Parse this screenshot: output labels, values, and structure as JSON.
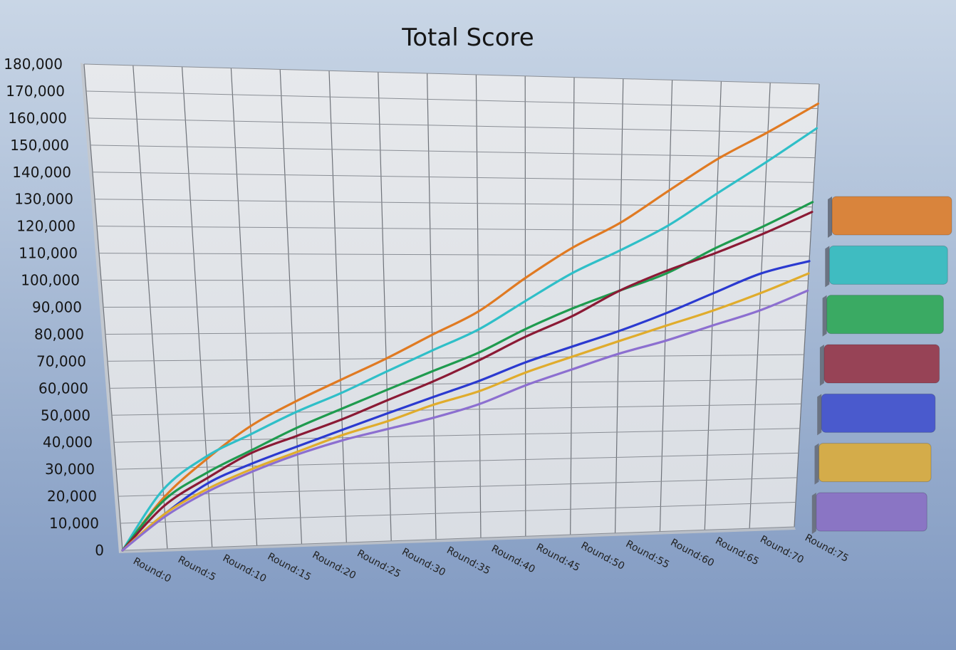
{
  "chart_data": {
    "type": "line",
    "title": "Total Score",
    "xlabel": "",
    "ylabel": "",
    "x_ticks": [
      "Round:0",
      "Round:5",
      "Round:10",
      "Round:15",
      "Round:20",
      "Round:25",
      "Round:30",
      "Round:35",
      "Round:40",
      "Round:45",
      "Round:50",
      "Round:55",
      "Round:60",
      "Round:65",
      "Round:70",
      "Round:75"
    ],
    "y_ticks": [
      "0",
      "10,000",
      "20,000",
      "30,000",
      "40,000",
      "50,000",
      "60,000",
      "70,000",
      "80,000",
      "90,000",
      "100,000",
      "110,000",
      "120,000",
      "130,000",
      "140,000",
      "150,000",
      "160,000",
      "170,000",
      "180,000"
    ],
    "ylim": [
      0,
      180000
    ],
    "xlim": [
      0,
      75
    ],
    "grid": true,
    "legend": "right",
    "x": [
      0,
      5,
      10,
      15,
      20,
      25,
      30,
      35,
      40,
      45,
      50,
      55,
      60,
      65,
      70,
      75
    ],
    "series": [
      {
        "color": "#e07a22",
        "values": [
          0,
          19000,
          33000,
          45000,
          54000,
          62000,
          70000,
          79000,
          88000,
          101000,
          113000,
          123000,
          136000,
          149000,
          160000,
          172000
        ]
      },
      {
        "color": "#2fbfc8",
        "values": [
          0,
          22000,
          34000,
          42000,
          50000,
          57000,
          65000,
          73000,
          81000,
          92000,
          103000,
          112000,
          122000,
          135000,
          148000,
          162000
        ]
      },
      {
        "color": "#1f9b4f",
        "values": [
          0,
          18000,
          28000,
          36000,
          44000,
          51000,
          58000,
          65000,
          72000,
          81000,
          89000,
          96000,
          103000,
          113000,
          122000,
          132000
        ]
      },
      {
        "color": "#8b1a35",
        "values": [
          0,
          16000,
          26000,
          35000,
          41000,
          47000,
          54000,
          61000,
          69000,
          78000,
          86000,
          96000,
          104000,
          111000,
          119000,
          128000
        ]
      },
      {
        "color": "#2b3ad0",
        "values": [
          0,
          13000,
          24000,
          31000,
          37000,
          43000,
          49000,
          55000,
          61000,
          68000,
          74000,
          80000,
          87000,
          95000,
          103000,
          108000
        ]
      },
      {
        "color": "#e0ac2c",
        "values": [
          0,
          13000,
          22000,
          29000,
          35000,
          41000,
          46000,
          52000,
          57000,
          64000,
          70000,
          76000,
          82000,
          88000,
          95000,
          103000
        ]
      },
      {
        "color": "#8c6fd0",
        "values": [
          0,
          12000,
          21000,
          28000,
          34000,
          39000,
          43000,
          47000,
          52000,
          59000,
          65000,
          71000,
          76000,
          82000,
          88000,
          96000
        ]
      }
    ],
    "legend_colors": [
      "#d9843c",
      "#3fbcc1",
      "#3aaa63",
      "#974356",
      "#4a5acd",
      "#d4ac4a",
      "#8a75c4"
    ]
  }
}
